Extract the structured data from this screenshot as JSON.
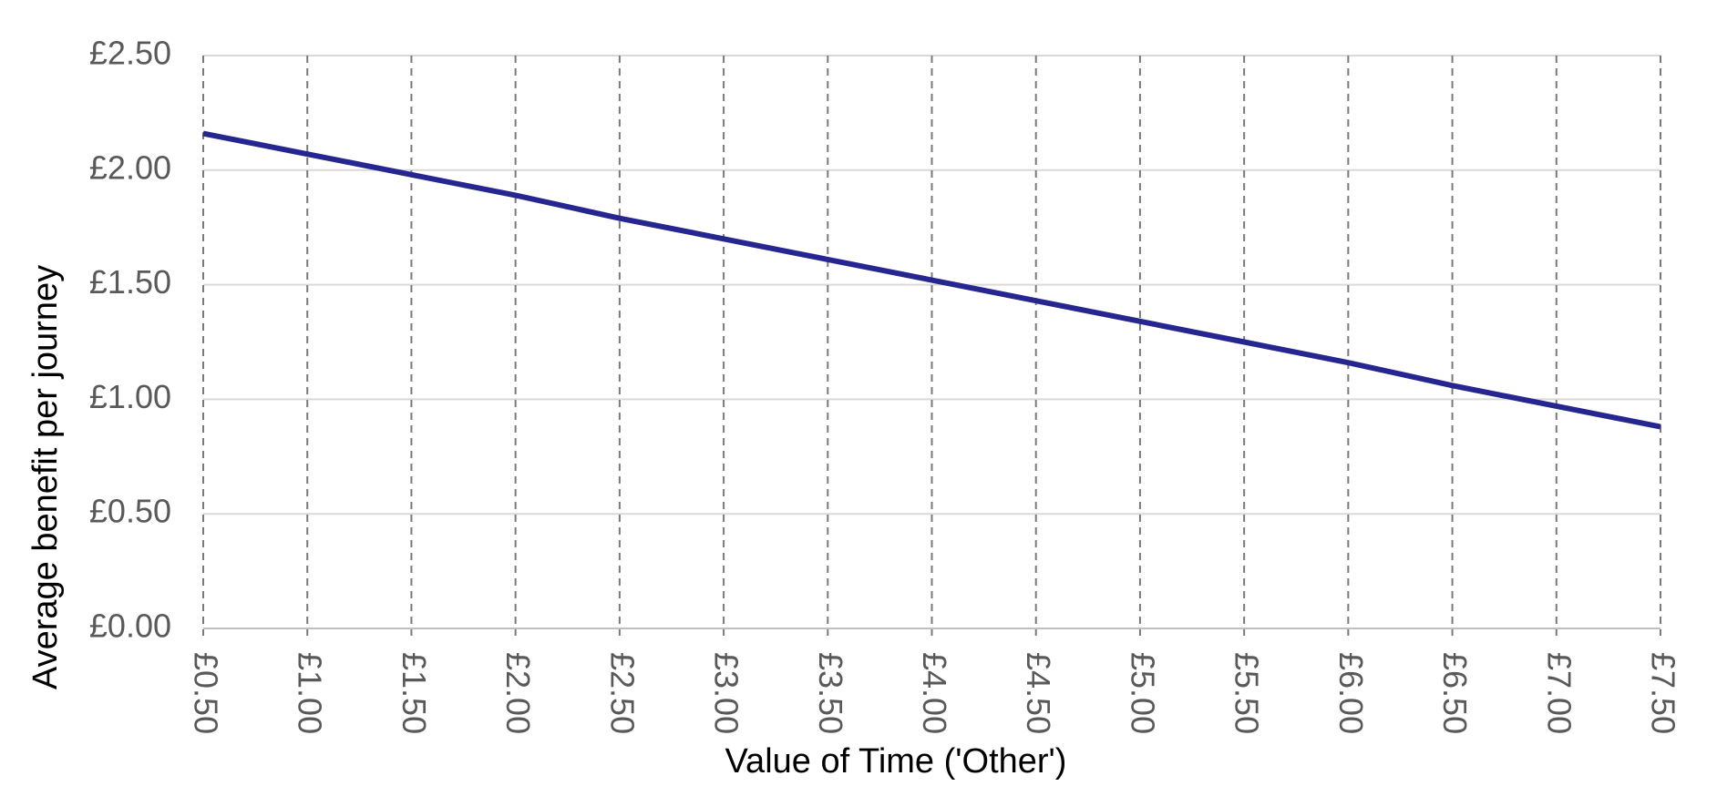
{
  "chart_data": {
    "type": "line",
    "x_label": "Value of Time ('Other')",
    "y_label": "Average benefit per journey",
    "x": [
      0.5,
      1.0,
      1.5,
      2.0,
      2.5,
      3.0,
      3.5,
      4.0,
      4.5,
      5.0,
      5.5,
      6.0,
      6.5,
      7.0,
      7.5
    ],
    "values": [
      2.16,
      2.07,
      1.98,
      1.89,
      1.79,
      1.7,
      1.61,
      1.52,
      1.43,
      1.34,
      1.25,
      1.16,
      1.06,
      0.97,
      0.88
    ],
    "color": "#262690",
    "xlim": [
      0.5,
      7.5
    ],
    "xticks": [
      {
        "value": 0.5,
        "label": "£0.50"
      },
      {
        "value": 1.0,
        "label": "£1.00"
      },
      {
        "value": 1.5,
        "label": "£1.50"
      },
      {
        "value": 2.0,
        "label": "£2.00"
      },
      {
        "value": 2.5,
        "label": "£2.50"
      },
      {
        "value": 3.0,
        "label": "£3.00"
      },
      {
        "value": 3.5,
        "label": "£3.50"
      },
      {
        "value": 4.0,
        "label": "£4.00"
      },
      {
        "value": 4.5,
        "label": "£4.50"
      },
      {
        "value": 5.0,
        "label": "£5.00"
      },
      {
        "value": 5.5,
        "label": "£5.50"
      },
      {
        "value": 6.0,
        "label": "£6.00"
      },
      {
        "value": 6.5,
        "label": "£6.50"
      },
      {
        "value": 7.0,
        "label": "£7.00"
      },
      {
        "value": 7.5,
        "label": "£7.50"
      }
    ],
    "ylim": [
      0,
      2.5
    ],
    "yticks": [
      {
        "value": 0,
        "label": "£0.00"
      },
      {
        "value": 0.5,
        "label": "£0.50"
      },
      {
        "value": 1.0,
        "label": "£1.00"
      },
      {
        "value": 1.5,
        "label": "£1.50"
      },
      {
        "value": 2.0,
        "label": "£2.00"
      },
      {
        "value": 2.5,
        "label": "£2.50"
      }
    ],
    "grid": true
  }
}
